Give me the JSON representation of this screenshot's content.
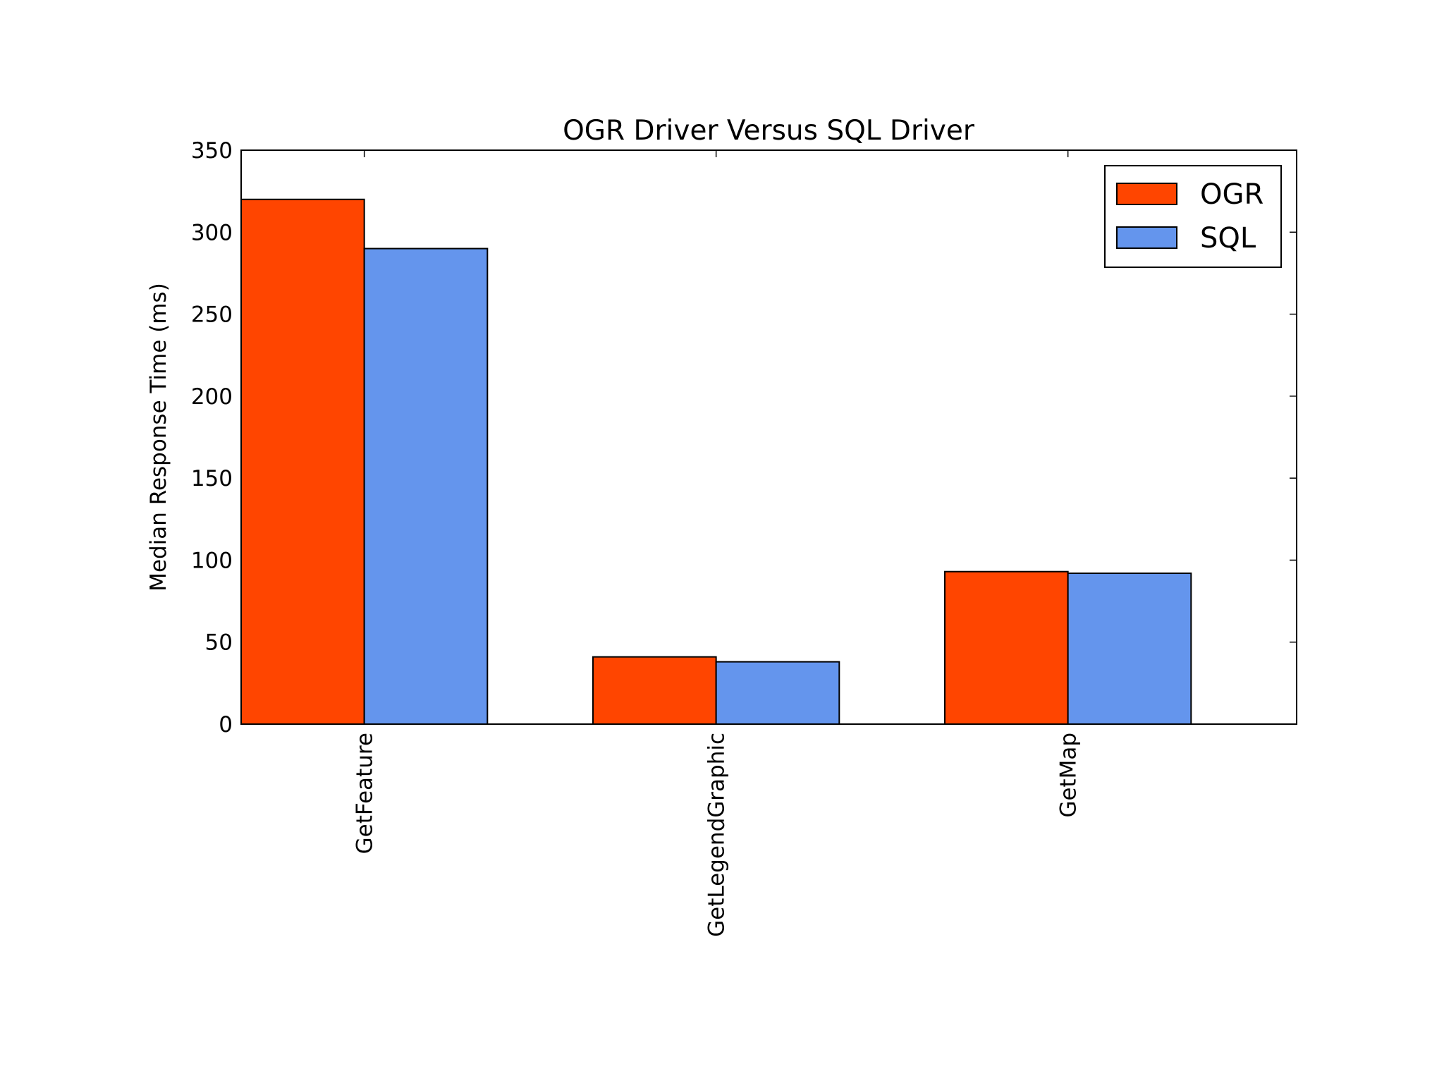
{
  "chart_data": {
    "type": "bar",
    "title": "OGR Driver Versus SQL Driver",
    "y_label": "Median Response Time (ms)",
    "categories": [
      "GetFeature",
      "GetLegendGraphic",
      "GetMap"
    ],
    "series": [
      {
        "name": "OGR",
        "color": "#ff4500",
        "values": [
          320,
          41,
          93
        ]
      },
      {
        "name": "SQL",
        "color": "#6495ed",
        "values": [
          290,
          38,
          92
        ]
      }
    ],
    "ylim": [
      0,
      350
    ],
    "yticks": [
      0,
      50,
      100,
      150,
      200,
      250,
      300,
      350
    ],
    "legend": "upper right"
  }
}
